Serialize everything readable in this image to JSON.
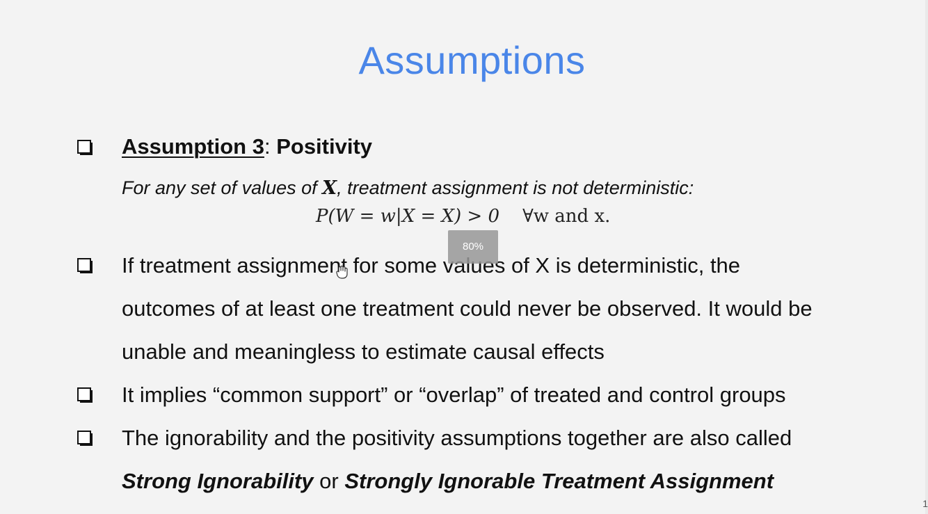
{
  "slide": {
    "title": "Assumptions",
    "page_number": "1"
  },
  "assumption": {
    "label": "Assumption 3",
    "separator": ": ",
    "name": "Positivity",
    "definition_prefix": "For any set of values of ",
    "definition_var": "X",
    "definition_suffix": ", treatment assignment is not deterministic:",
    "formula_lhs": "P(W = w|X = X) > 0",
    "formula_rhs": "∀w and x."
  },
  "bullets": {
    "b2_line1": "If treatment assignment for some values of X is deterministic, the",
    "b2_line2": "outcomes of at least one treatment could never be observed. It would be",
    "b2_line3": "unable and meaningless to estimate causal effects",
    "b3": "It implies “common support” or “overlap” of treated and control groups",
    "b4_line1": "The ignorability and the positivity assumptions together are also called",
    "b4_term1": "Strong Ignorability",
    "b4_or": " or ",
    "b4_term2": "Strongly Ignorable Treatment Assignment"
  },
  "overlay": {
    "zoom_level": "80%",
    "cursor_icon": "hand-grab-icon"
  },
  "colors": {
    "title": "#4a86e8",
    "text": "#111111",
    "background": "#f3f3f3"
  }
}
